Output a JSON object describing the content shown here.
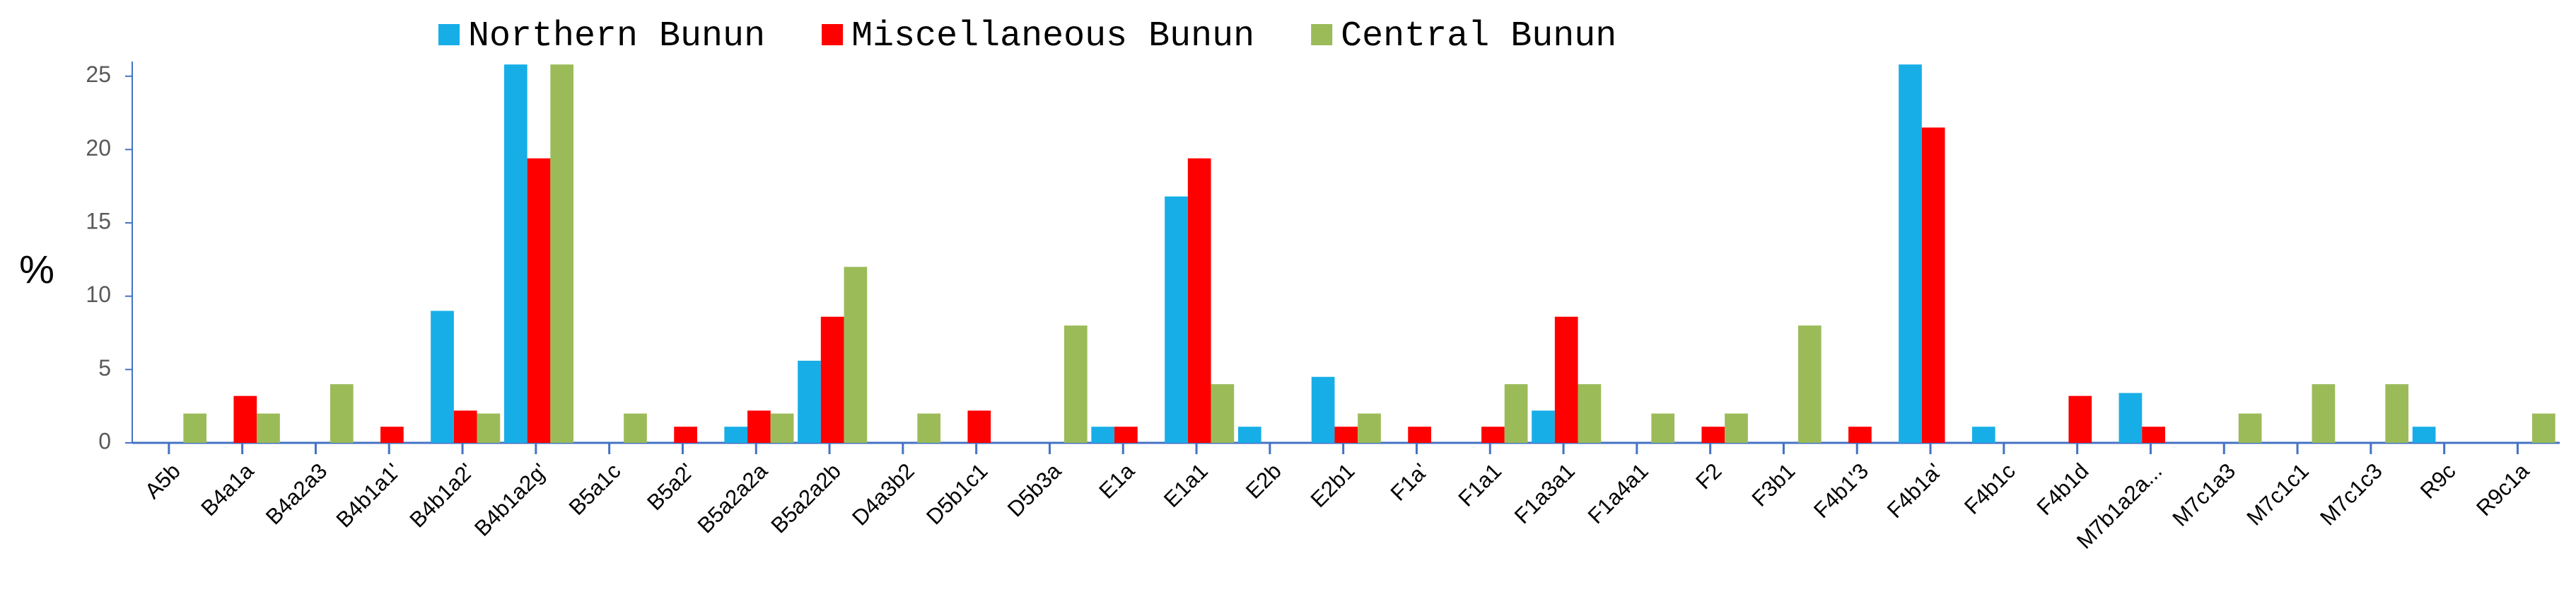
{
  "chart_data": {
    "type": "bar",
    "y_label": "%",
    "categories": [
      "A5b",
      "B4a1a",
      "B4a2a3",
      "B4b1a1'",
      "B4b1a2'",
      "B4b1a2g'",
      "B5a1c",
      "B5a2'",
      "B5a2a2a",
      "B5a2a2b",
      "D4a3b2",
      "D5b1c1",
      "D5b3a",
      "E1a",
      "E1a1",
      "E2b",
      "E2b1",
      "F1a'",
      "F1a1",
      "F1a3a1",
      "F1a4a1",
      "F2",
      "F3b1",
      "F4b1'3",
      "F4b1a'",
      "F4b1c",
      "F4b1d",
      "M7b1a2a...",
      "M7c1a3",
      "M7c1c1",
      "M7c1c3",
      "R9c",
      "R9c1a"
    ],
    "series": [
      {
        "name": "Northern Bunun",
        "color": "#17aee8",
        "values": [
          0,
          0,
          0,
          0,
          9,
          25.8,
          0,
          0,
          1.1,
          5.6,
          0,
          0,
          0,
          1.1,
          16.8,
          1.1,
          4.5,
          0,
          0,
          2.2,
          0,
          0,
          0,
          0,
          25.8,
          1.1,
          0,
          3.4,
          0,
          0,
          0,
          1.1,
          0
        ]
      },
      {
        "name": "Miscellaneous Bunun",
        "color": "#ff0000",
        "values": [
          0,
          3.2,
          0,
          1.1,
          2.2,
          19.4,
          0,
          1.1,
          2.2,
          8.6,
          0,
          2.2,
          0,
          1.1,
          19.4,
          0,
          1.1,
          1.1,
          1.1,
          8.6,
          0,
          1.1,
          0,
          1.1,
          21.5,
          0,
          3.2,
          1.1,
          0,
          0,
          0,
          0,
          0
        ]
      },
      {
        "name": "Central Bunun",
        "color": "#9bbb59",
        "values": [
          2,
          2,
          4,
          0,
          2,
          25.8,
          2,
          0,
          2,
          12,
          2,
          0,
          8,
          0,
          4,
          0,
          2,
          0,
          4,
          4,
          2,
          2,
          8,
          0,
          0,
          0,
          0,
          0,
          2,
          4,
          4,
          0,
          2
        ]
      }
    ],
    "ylim": [
      0,
      26
    ],
    "yticks": [
      0,
      5,
      10,
      15,
      20,
      25
    ],
    "grid": false,
    "legend": "top"
  }
}
